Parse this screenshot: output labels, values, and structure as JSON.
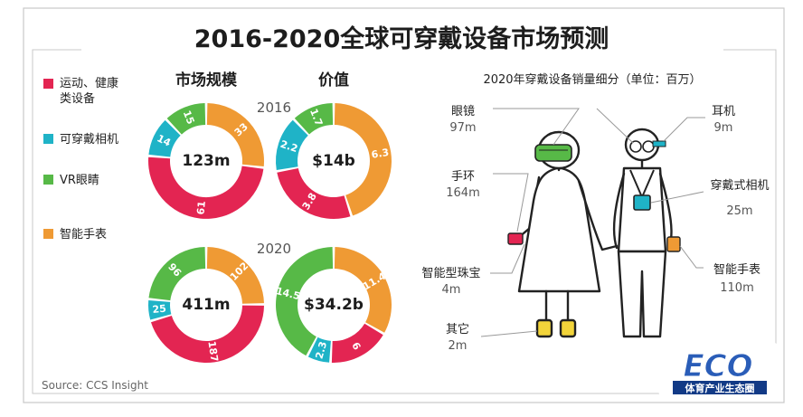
{
  "title": "2016-2020全球可穿戴设备市场预测",
  "source": "Source: CCS Insight",
  "section_size": "市场规模",
  "section_value": "价值",
  "year_2016": "2016",
  "year_2020": "2020",
  "legend": {
    "sport": "运动、健康",
    "sport2": "类设备",
    "camera": "可穿戴相机",
    "vr": "VR眼睛",
    "watch": "智能手表"
  },
  "colors": {
    "sport": "#e32552",
    "camera": "#1fb3c7",
    "vr": "#57b947",
    "watch": "#ef9a34"
  },
  "chart_data": [
    {
      "type": "pie",
      "style": "donut",
      "center_label": "123m",
      "slices": [
        {
          "name": "运动、健康类设备",
          "value": 61
        },
        {
          "name": "可穿戴相机",
          "value": 14
        },
        {
          "name": "VR眼睛",
          "value": 15
        },
        {
          "name": "智能手表",
          "value": 33
        }
      ]
    },
    {
      "type": "pie",
      "style": "donut",
      "center_label": "$14b",
      "slices": [
        {
          "name": "运动、健康类设备",
          "value": 3.8
        },
        {
          "name": "可穿戴相机",
          "value": 2.2
        },
        {
          "name": "VR眼睛",
          "value": 1.7
        },
        {
          "name": "智能手表",
          "value": 6.3
        }
      ]
    },
    {
      "type": "pie",
      "style": "donut",
      "center_label": "411m",
      "slices": [
        {
          "name": "运动、健康类设备",
          "value": 187
        },
        {
          "name": "可穿戴相机",
          "value": 25
        },
        {
          "name": "VR眼睛",
          "value": 96
        },
        {
          "name": "智能手表",
          "value": 102
        }
      ]
    },
    {
      "type": "pie",
      "style": "donut",
      "center_label": "$34.2b",
      "slices": [
        {
          "name": "运动、健康类设备",
          "value": 6.0
        },
        {
          "name": "可穿戴相机",
          "value": 2.3
        },
        {
          "name": "VR眼睛",
          "value": 14.5
        },
        {
          "name": "智能手表",
          "value": 11.4
        }
      ]
    },
    {
      "type": "table",
      "title": "2020年穿戴设备销量细分（单位：百万）",
      "rows": [
        {
          "name": "眼镜",
          "value": "97m"
        },
        {
          "name": "耳机",
          "value": "9m"
        },
        {
          "name": "手环",
          "value": "164m"
        },
        {
          "name": "穿戴式相机",
          "value": "25m"
        },
        {
          "name": "智能型珠宝",
          "value": "4m"
        },
        {
          "name": "智能手表",
          "value": "110m"
        },
        {
          "name": "其它",
          "value": "2m"
        }
      ]
    }
  ],
  "logo": {
    "main": "ECO",
    "sub": "体育产业生态圈"
  }
}
